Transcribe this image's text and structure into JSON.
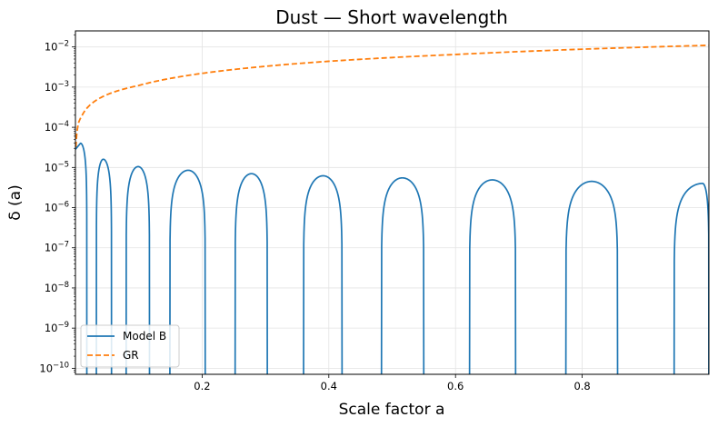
{
  "chart_data": {
    "type": "line",
    "title": "Dust — Short wavelength",
    "xlabel": "Scale factor a",
    "ylabel": "δ (a)",
    "xscale": "linear",
    "yscale": "log",
    "xlim": [
      0.0,
      1.0
    ],
    "ylim_log10": [
      -10.15,
      -1.6
    ],
    "grid": true,
    "x_ticks": [
      0.2,
      0.4,
      0.6,
      0.8
    ],
    "x_tick_labels": [
      "0.2",
      "0.4",
      "0.6",
      "0.8"
    ],
    "y_ticks_log10": [
      -10,
      -9,
      -8,
      -7,
      -6,
      -5,
      -4,
      -3,
      -2
    ],
    "y_tick_labels": [
      {
        "base": "10",
        "exp": "−10"
      },
      {
        "base": "10",
        "exp": "−9"
      },
      {
        "base": "10",
        "exp": "−8"
      },
      {
        "base": "10",
        "exp": "−7"
      },
      {
        "base": "10",
        "exp": "−6"
      },
      {
        "base": "10",
        "exp": "−5"
      },
      {
        "base": "10",
        "exp": "−4"
      },
      {
        "base": "10",
        "exp": "−3"
      },
      {
        "base": "10",
        "exp": "−2"
      }
    ],
    "legend_position": "lower-left",
    "series": [
      {
        "name": "Model B",
        "style": "solid",
        "color": "#1f77b4",
        "description": "oscillating |delta| with lobes between zero crossings",
        "lobes": [
          {
            "start": 0.0,
            "end": 0.018,
            "peak_a": 0.008,
            "peak": 4e-05
          },
          {
            "start": 0.033,
            "end": 0.057,
            "peak_a": 0.044,
            "peak": 1.6e-05
          },
          {
            "start": 0.08,
            "end": 0.117,
            "peak_a": 0.099,
            "peak": 1.05e-05
          },
          {
            "start": 0.149,
            "end": 0.205,
            "peak_a": 0.178,
            "peak": 8.5e-06
          },
          {
            "start": 0.252,
            "end": 0.303,
            "peak_a": 0.278,
            "peak": 7e-06
          },
          {
            "start": 0.36,
            "end": 0.421,
            "peak_a": 0.391,
            "peak": 6.2e-06
          },
          {
            "start": 0.483,
            "end": 0.55,
            "peak_a": 0.516,
            "peak": 5.5e-06
          },
          {
            "start": 0.622,
            "end": 0.695,
            "peak_a": 0.658,
            "peak": 4.9e-06
          },
          {
            "start": 0.774,
            "end": 0.856,
            "peak_a": 0.815,
            "peak": 4.5e-06
          },
          {
            "start": 0.945,
            "end": 1.0,
            "peak_a": 0.99,
            "peak": 4e-06
          }
        ]
      },
      {
        "name": "GR",
        "style": "dashed",
        "color": "#ff7f0e",
        "description": "growing mode delta proportional to a",
        "x": [
          0.0008,
          0.005,
          0.01,
          0.03,
          0.05,
          0.1,
          0.2,
          0.4,
          0.6,
          0.8,
          1.0
        ],
        "y": [
          3.2e-05,
          0.00013,
          0.00019,
          0.00044,
          0.00065,
          0.0011,
          0.0022,
          0.0044,
          0.0065,
          0.0088,
          0.011
        ]
      }
    ]
  }
}
